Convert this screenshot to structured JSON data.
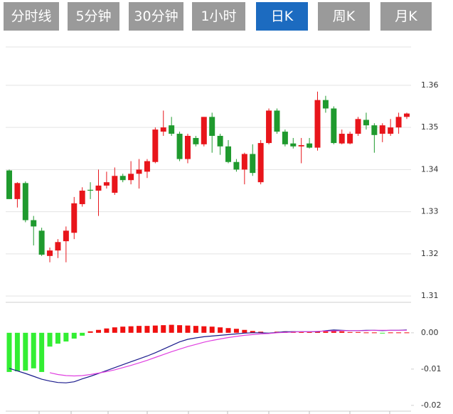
{
  "tabs": {
    "items": [
      "分时线",
      "5分钟",
      "30分钟",
      "1小时",
      "日K",
      "周K",
      "月K"
    ],
    "selected": 4
  },
  "chart_data": [
    {
      "type": "candlestick",
      "up_color": "#e8151b",
      "down_color": "#1f9a2e",
      "ylim": [
        1.3085,
        1.3691
      ],
      "yticks": [
        1.31,
        1.32,
        1.33,
        1.34,
        1.35,
        1.36
      ],
      "grid": true,
      "open": [
        1.3398,
        1.333,
        1.3368,
        1.328,
        1.3255,
        1.3195,
        1.3208,
        1.323,
        1.325,
        1.3318,
        1.3352,
        1.335,
        1.3362,
        1.3345,
        1.3385,
        1.3375,
        1.339,
        1.3395,
        1.3418,
        1.349,
        1.3505,
        1.3485,
        1.3425,
        1.3475,
        1.346,
        1.3525,
        1.348,
        1.3455,
        1.3418,
        1.34,
        1.3437,
        1.337,
        1.3463,
        1.354,
        1.349,
        1.3462,
        1.3455,
        1.3462,
        1.3452,
        1.3565,
        1.3545,
        1.3462,
        1.3462,
        1.3485,
        1.3518,
        1.3505,
        1.3485,
        1.3485,
        1.35,
        1.3525
      ],
      "high": [
        1.34,
        1.337,
        1.3372,
        1.329,
        1.3262,
        1.3215,
        1.3235,
        1.3265,
        1.3335,
        1.3358,
        1.337,
        1.34,
        1.3395,
        1.3405,
        1.339,
        1.342,
        1.3425,
        1.3425,
        1.35,
        1.354,
        1.3525,
        1.349,
        1.3485,
        1.348,
        1.3525,
        1.3535,
        1.3485,
        1.347,
        1.3425,
        1.344,
        1.346,
        1.347,
        1.3545,
        1.3545,
        1.3495,
        1.3475,
        1.3475,
        1.3475,
        1.3585,
        1.3575,
        1.355,
        1.3495,
        1.349,
        1.3525,
        1.3535,
        1.351,
        1.351,
        1.352,
        1.3535,
        1.3535
      ],
      "low": [
        1.333,
        1.331,
        1.3275,
        1.322,
        1.3195,
        1.318,
        1.319,
        1.318,
        1.3235,
        1.3312,
        1.333,
        1.329,
        1.3355,
        1.334,
        1.337,
        1.3365,
        1.3355,
        1.338,
        1.3415,
        1.348,
        1.348,
        1.342,
        1.3415,
        1.3455,
        1.3455,
        1.344,
        1.3435,
        1.3415,
        1.3395,
        1.3365,
        1.3385,
        1.3365,
        1.346,
        1.3485,
        1.3455,
        1.345,
        1.3415,
        1.345,
        1.3445,
        1.3535,
        1.346,
        1.346,
        1.346,
        1.348,
        1.3495,
        1.344,
        1.3465,
        1.348,
        1.3485,
        1.352
      ],
      "close": [
        1.333,
        1.3368,
        1.328,
        1.3265,
        1.3198,
        1.3208,
        1.3228,
        1.3255,
        1.332,
        1.335,
        1.335,
        1.3362,
        1.337,
        1.3385,
        1.3375,
        1.339,
        1.34,
        1.342,
        1.3495,
        1.35,
        1.3485,
        1.3425,
        1.348,
        1.346,
        1.3525,
        1.348,
        1.3455,
        1.3418,
        1.34,
        1.3437,
        1.3392,
        1.3463,
        1.354,
        1.349,
        1.346,
        1.3455,
        1.3458,
        1.3452,
        1.3565,
        1.3545,
        1.3463,
        1.3485,
        1.3485,
        1.352,
        1.3505,
        1.3482,
        1.3505,
        1.35,
        1.3525,
        1.3533
      ]
    },
    {
      "type": "macd",
      "ylim": [
        -0.0216,
        0.0084
      ],
      "yticks": [
        {
          "value": 0,
          "label": "0.00"
        },
        {
          "value": -0.01,
          "label": "-0.01"
        },
        {
          "value": -0.02,
          "label": "-0.02"
        }
      ],
      "series": [
        {
          "type": "histogram",
          "up_color": "#f01010",
          "down_color": "#33ee33",
          "values": [
            -0.0108,
            -0.0106,
            -0.0104,
            -0.0098,
            -0.0108,
            -0.0038,
            -0.003,
            -0.0024,
            -0.0016,
            -0.0008,
            0.0004,
            0.0008,
            0.0012,
            0.0015,
            0.0017,
            0.0018,
            0.0019,
            0.0019,
            0.002,
            0.0021,
            0.0022,
            0.0021,
            0.002,
            0.0019,
            0.0018,
            0.0017,
            0.0015,
            0.0013,
            0.0011,
            0.0008,
            0.0005,
            0.0003,
            -0.0002,
            0.0003,
            0.0004,
            0.0004,
            0.0003,
            0.0003,
            0.0003,
            0.0004,
            0.0006,
            0.0004,
            0.0002,
            0.0002,
            0.0001,
            0.0001,
            -0.0001,
            0.0001,
            0.0001,
            0.0001
          ]
        },
        {
          "type": "line",
          "color": "#1a1a8c",
          "values": [
            -0.0098,
            -0.0105,
            -0.0112,
            -0.012,
            -0.0128,
            -0.0133,
            -0.0137,
            -0.0138,
            -0.0135,
            -0.0127,
            -0.012,
            -0.0112,
            -0.0104,
            -0.0096,
            -0.0088,
            -0.008,
            -0.0072,
            -0.0064,
            -0.0055,
            -0.0045,
            -0.0035,
            -0.0025,
            -0.0018,
            -0.0014,
            -0.0011,
            -0.0009,
            -0.0007,
            -0.0005,
            -0.0003,
            -0.0001,
            0.0,
            0.0,
            -0.0001,
            0.0001,
            0.0003,
            0.0003,
            0.0003,
            0.0003,
            0.0003,
            0.0006,
            0.0008,
            0.0007,
            0.0006,
            0.0006,
            0.0007,
            0.0007,
            0.0006,
            0.0007,
            0.0007,
            0.0008
          ]
        },
        {
          "type": "line",
          "color": "#e040e0",
          "values": [
            null,
            null,
            null,
            null,
            null,
            -0.011,
            -0.0115,
            -0.0118,
            -0.0119,
            -0.0118,
            -0.0115,
            -0.0111,
            -0.0107,
            -0.0102,
            -0.0096,
            -0.009,
            -0.0083,
            -0.0076,
            -0.0068,
            -0.006,
            -0.0052,
            -0.0045,
            -0.0038,
            -0.0032,
            -0.0026,
            -0.0021,
            -0.0017,
            -0.0013,
            -0.001,
            -0.0007,
            -0.0005,
            -0.0003,
            -0.0002,
            0.0,
            0.0001,
            0.0002,
            0.0003,
            0.0003,
            0.0004,
            0.0005,
            0.0005,
            0.0006,
            0.0006,
            0.0006,
            0.0006,
            0.0007,
            0.0007,
            0.0007,
            0.0007,
            0.0007
          ]
        }
      ]
    }
  ]
}
